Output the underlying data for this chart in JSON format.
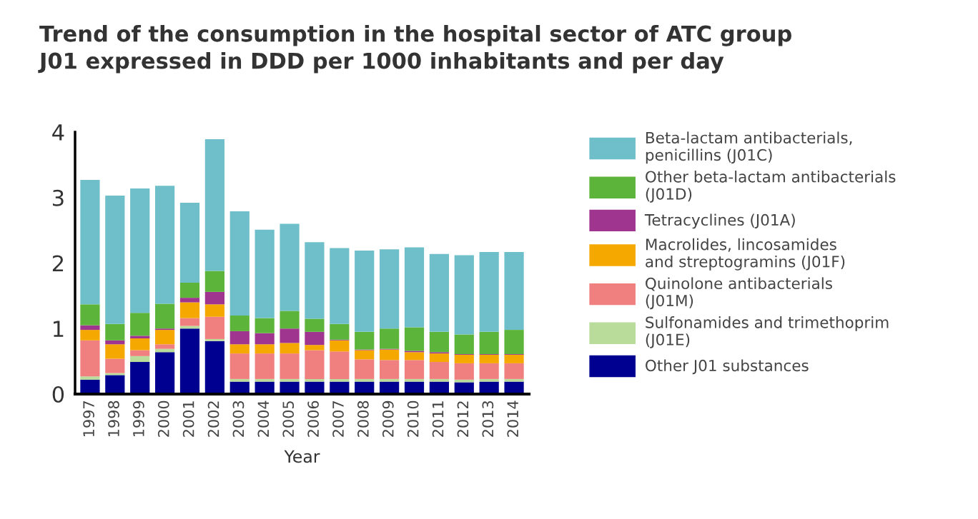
{
  "chart_data": {
    "type": "bar",
    "stacked": true,
    "title": "Trend of the consumption in the hospital sector of ATC group\nJ01 expressed in DDD per 1000 inhabitants and per day",
    "xlabel": "Year",
    "categories": [
      "1997",
      "1998",
      "1999",
      "2000",
      "2001",
      "2002",
      "2003",
      "2004",
      "2005",
      "2006",
      "2007",
      "2008",
      "2009",
      "2010",
      "2011",
      "2012",
      "2013",
      "2014"
    ],
    "series": [
      {
        "name": "Other J01 substances",
        "color": "#000090",
        "values": [
          0.22,
          0.29,
          0.49,
          0.64,
          1.0,
          0.81,
          0.19,
          0.19,
          0.19,
          0.19,
          0.19,
          0.19,
          0.19,
          0.19,
          0.19,
          0.18,
          0.19,
          0.19
        ]
      },
      {
        "name": "Sulfonamides and trimethoprim\n(J01E)",
        "color": "#b9dc9a",
        "values": [
          0.05,
          0.03,
          0.09,
          0.05,
          0.04,
          0.03,
          0.04,
          0.04,
          0.04,
          0.04,
          0.04,
          0.04,
          0.04,
          0.04,
          0.04,
          0.04,
          0.04,
          0.04
        ]
      },
      {
        "name": "Quinolone antibacterials\n(J01M)",
        "color": "#f08080",
        "values": [
          0.55,
          0.22,
          0.09,
          0.07,
          0.12,
          0.34,
          0.39,
          0.39,
          0.39,
          0.44,
          0.42,
          0.3,
          0.29,
          0.29,
          0.26,
          0.25,
          0.24,
          0.24
        ]
      },
      {
        "name": "Macrolides, lincosamides\nand streptogramins (J01F)",
        "color": "#f5a800",
        "values": [
          0.16,
          0.22,
          0.18,
          0.22,
          0.24,
          0.19,
          0.14,
          0.14,
          0.16,
          0.08,
          0.17,
          0.14,
          0.16,
          0.12,
          0.13,
          0.13,
          0.13,
          0.13
        ]
      },
      {
        "name": "Tetracyclines (J01A)",
        "color": "#a0358f",
        "values": [
          0.07,
          0.06,
          0.04,
          0.02,
          0.07,
          0.19,
          0.2,
          0.17,
          0.22,
          0.2,
          0.01,
          0.01,
          0.01,
          0.02,
          0.02,
          0.01,
          0.01,
          0.01
        ]
      },
      {
        "name": "Other beta-lactam antibacterials\n(J01D)",
        "color": "#5db43a",
        "values": [
          0.32,
          0.25,
          0.35,
          0.38,
          0.23,
          0.32,
          0.24,
          0.23,
          0.27,
          0.2,
          0.24,
          0.27,
          0.31,
          0.36,
          0.31,
          0.3,
          0.34,
          0.37
        ]
      },
      {
        "name": "Beta-lactam antibacterials,\npenicillins (J01C)",
        "color": "#6fbfca",
        "values": [
          1.9,
          1.96,
          1.9,
          1.8,
          1.22,
          2.01,
          1.59,
          1.35,
          1.33,
          1.17,
          1.16,
          1.24,
          1.21,
          1.22,
          1.19,
          1.21,
          1.22,
          1.19
        ]
      }
    ],
    "ylim": [
      0,
      4
    ],
    "yticks": [
      0,
      1,
      2,
      3,
      4
    ],
    "grid": false,
    "legend": "right"
  }
}
